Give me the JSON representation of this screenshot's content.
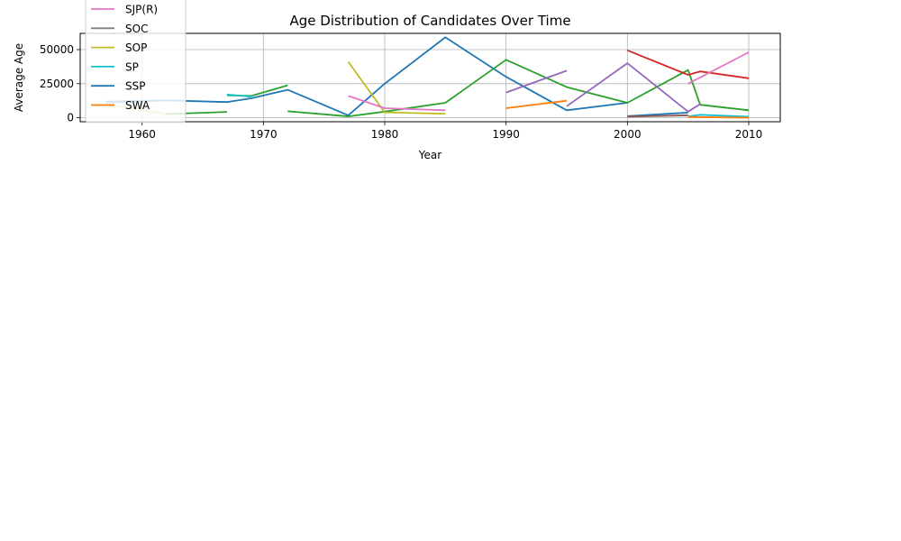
{
  "chart_data": {
    "type": "line",
    "title": "Age Distribution of Candidates Over Time",
    "xlabel": "Year",
    "ylabel": "Average Age",
    "xlim": [
      1954.9,
      2012.6
    ],
    "ylim": [
      -2900,
      61900
    ],
    "xticks": [
      1960,
      1970,
      1980,
      1990,
      2000,
      2010
    ],
    "yticks": [
      0,
      25000,
      50000
    ],
    "ytick_labels": [
      "0",
      "25000",
      "50000"
    ],
    "grid": true,
    "legend_position": "upper-left",
    "legend": [
      {
        "name": "SJP(R)",
        "color": "#e377c2"
      },
      {
        "name": "SOC",
        "color": "#7f7f7f"
      },
      {
        "name": "SOP",
        "color": "#bcbd22"
      },
      {
        "name": "SP",
        "color": "#17becf"
      },
      {
        "name": "SSP",
        "color": "#1f77b4"
      },
      {
        "name": "SWA",
        "color": "#ff7f0e"
      }
    ],
    "series": [
      {
        "color": "#aec7e8",
        "x": [
          1957,
          1962
        ],
        "y": [
          10500,
          12800
        ]
      },
      {
        "color": "#98df8a",
        "x": [
          1957,
          1962
        ],
        "y": [
          10000,
          3000
        ]
      },
      {
        "color": "#dbdb8d",
        "x": [
          1957,
          1962
        ],
        "y": [
          9500,
          2500
        ]
      },
      {
        "color": "#2ca02c",
        "x": [
          1962,
          1967
        ],
        "y": [
          2700,
          4300
        ]
      },
      {
        "color": "#1f77b4",
        "x": [
          1957,
          1962,
          1967,
          1969,
          1972,
          1977,
          1980,
          1985,
          1990,
          1995,
          2000
        ],
        "y": [
          11800,
          12800,
          11500,
          14300,
          20500,
          1800,
          25000,
          59000,
          30000,
          5500,
          11000
        ]
      },
      {
        "color": "#2ca02c",
        "x": [
          1967,
          1969,
          1972
        ],
        "y": [
          16500,
          16000,
          23800
        ]
      },
      {
        "color": "#17becf",
        "x": [
          1967,
          1969
        ],
        "y": [
          17000,
          15500
        ]
      },
      {
        "color": "#2ca02c",
        "x": [
          1972,
          1977,
          1980,
          1985,
          1990,
          1995,
          2000,
          2005,
          2006,
          2010
        ],
        "y": [
          4800,
          1000,
          4500,
          11000,
          42500,
          22500,
          11000,
          35000,
          9500,
          5500
        ]
      },
      {
        "color": "#bcbd22",
        "x": [
          1977,
          1980,
          1985
        ],
        "y": [
          41000,
          4000,
          3000
        ]
      },
      {
        "color": "#e377c2",
        "x": [
          1977,
          1980,
          1985
        ],
        "y": [
          16000,
          7000,
          5500
        ]
      },
      {
        "color": "#ff7f0e",
        "x": [
          1990,
          1995
        ],
        "y": [
          7000,
          12500
        ]
      },
      {
        "color": "#9467bd",
        "x": [
          1990,
          1995
        ],
        "y": [
          18500,
          34500
        ]
      },
      {
        "color": "#9467bd",
        "x": [
          1995,
          2000,
          2005,
          2006
        ],
        "y": [
          8500,
          40000,
          4500,
          10000
        ]
      },
      {
        "color": "#d62728",
        "x": [
          2000,
          2005,
          2006,
          2010
        ],
        "y": [
          49500,
          31500,
          34000,
          29000
        ]
      },
      {
        "color": "#e377c2",
        "x": [
          2005,
          2010
        ],
        "y": [
          25000,
          48000
        ]
      },
      {
        "color": "#1f77b4",
        "x": [
          2000,
          2005
        ],
        "y": [
          1200,
          3800
        ]
      },
      {
        "color": "#8c564b",
        "x": [
          2000,
          2005
        ],
        "y": [
          800,
          1800
        ]
      },
      {
        "color": "#ffbb78",
        "x": [
          2005,
          2010
        ],
        "y": [
          500,
          200
        ]
      },
      {
        "color": "#17becf",
        "x": [
          2005,
          2006,
          2010
        ],
        "y": [
          1000,
          2200,
          800
        ]
      },
      {
        "color": "#ff7f0e",
        "x": [
          2005,
          2010
        ],
        "y": [
          600,
          0
        ]
      }
    ]
  }
}
